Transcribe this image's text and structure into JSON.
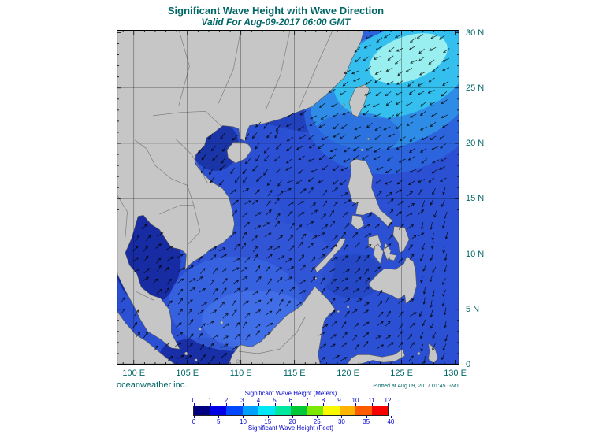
{
  "title": "Significant Wave Height with Wave Direction",
  "subtitle": "Valid For Aug-09-2017 06:00 GMT",
  "credit": "oceanweather inc.",
  "plotted_at": "Plotted at Aug 09, 2017 01:45 GMT",
  "map": {
    "region": "South China Sea / Western Pacific",
    "overlay": "wave-direction-arrows",
    "lon_ticks": [
      "100 E",
      "105 E",
      "110 E",
      "115 E",
      "120 E",
      "125 E",
      "130 E"
    ],
    "lat_ticks": [
      "30 N",
      "25 N",
      "20 N",
      "15 N",
      "10 N",
      "5 N",
      "0"
    ],
    "lon_range": [
      100,
      130
    ],
    "lat_range": [
      0,
      30
    ]
  },
  "colorbar": {
    "title_meters": "Significant Wave Height (Meters)",
    "title_feet": "Significant Wave Height (Feet)",
    "meters_ticks": [
      0,
      1,
      2,
      3,
      4,
      5,
      6,
      7,
      8,
      9,
      10,
      11,
      12
    ],
    "feet_ticks": [
      0,
      5,
      10,
      15,
      20,
      25,
      30,
      35,
      40
    ],
    "colors": [
      "#000080",
      "#0000e8",
      "#0047ff",
      "#00a0ff",
      "#00e8f8",
      "#00e8a0",
      "#00c837",
      "#7ce800",
      "#f8f800",
      "#ffb400",
      "#ff5a00",
      "#f80000"
    ]
  },
  "colors": {
    "title_text": "#006666",
    "axis_text": "#006666",
    "scale_text": "#0000cc",
    "land": "#c6c6c6",
    "ocean": "#2b50d4",
    "wave_peak": "#9ff0ee"
  }
}
